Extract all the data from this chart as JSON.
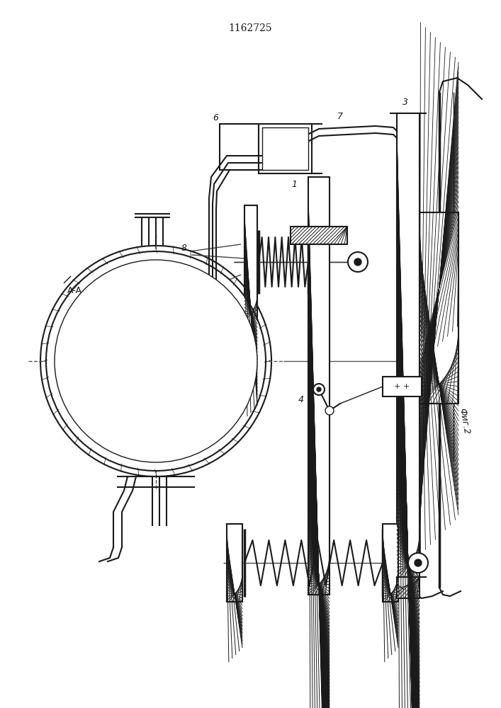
{
  "title": "1162725",
  "title_fontsize": 10,
  "bg_color": "#ffffff",
  "line_color": "#1a1a1a",
  "label_fig2": "Фиг.2",
  "label_AA": "A-A"
}
